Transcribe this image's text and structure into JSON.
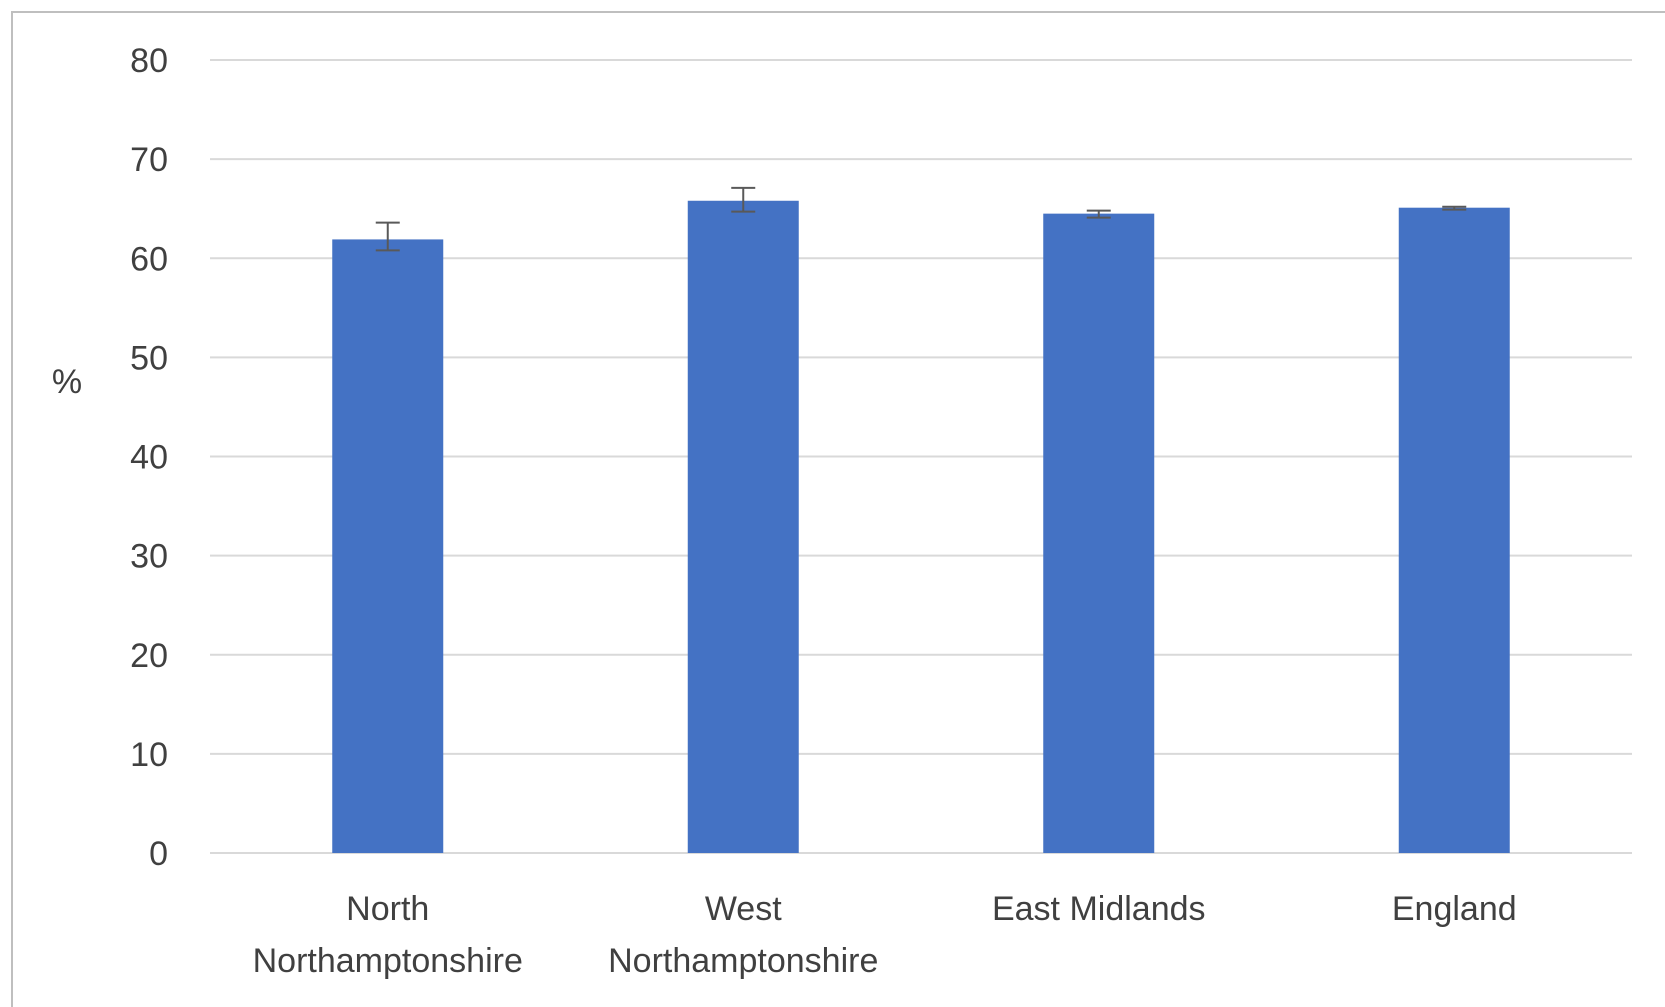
{
  "chart_data": {
    "type": "bar",
    "title": "",
    "xlabel": "",
    "ylabel": "%",
    "ylim": [
      0,
      80
    ],
    "yticks": [
      0,
      10,
      20,
      30,
      40,
      50,
      60,
      70,
      80
    ],
    "grid": true,
    "legend": "none",
    "bar_color": "#4472C4",
    "categories": [
      [
        "North",
        "Northamptonshire"
      ],
      [
        "West",
        "Northamptonshire"
      ],
      [
        "East Midlands"
      ],
      [
        "England"
      ]
    ],
    "series": [
      {
        "values": [
          61.9,
          65.8,
          64.5,
          65.1
        ],
        "error_low": [
          60.8,
          64.7,
          64.1,
          64.9
        ],
        "error_high": [
          63.6,
          67.1,
          64.8,
          65.2
        ]
      }
    ]
  }
}
